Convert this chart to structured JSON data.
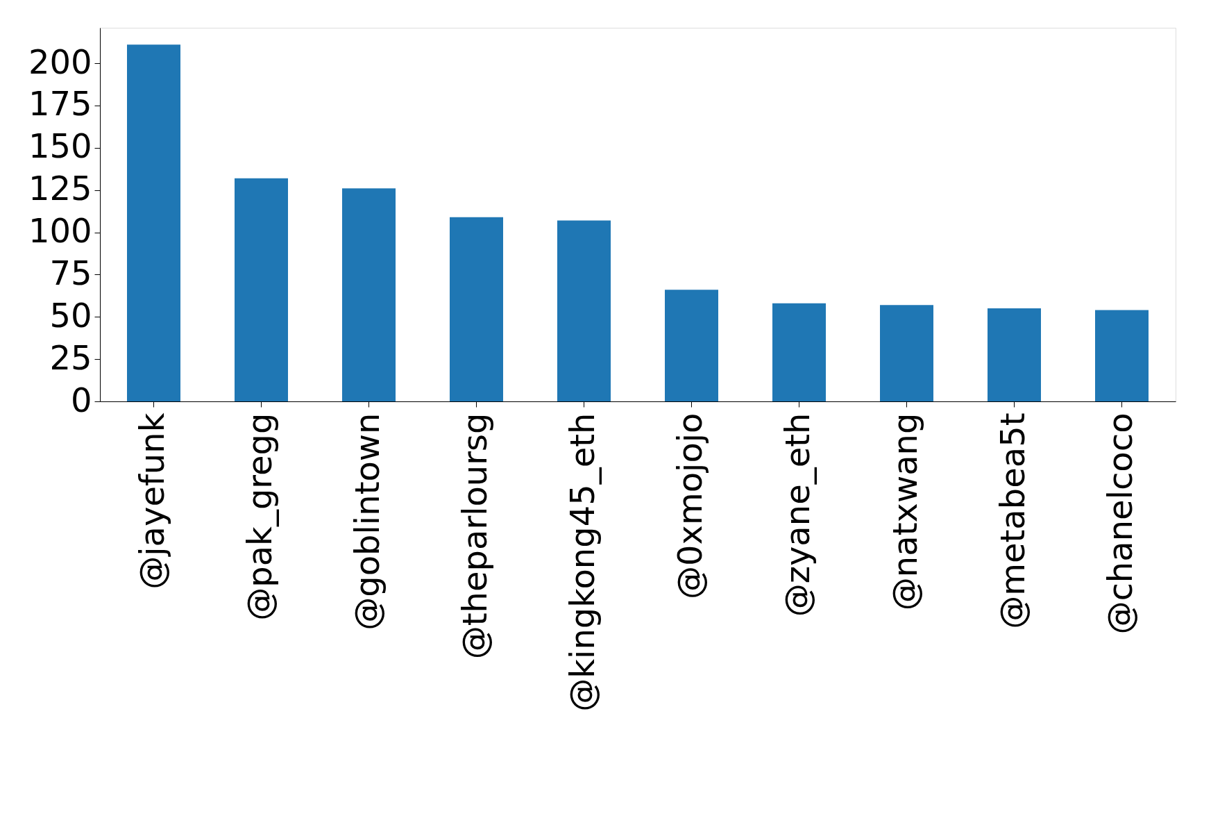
{
  "chart_data": {
    "type": "bar",
    "categories": [
      "@jayefunk",
      "@pak_gregg",
      "@goblintown",
      "@theparloursg",
      "@kingkong45_eth",
      "@0xmojojo",
      "@zyane_eth",
      "@natxwang",
      "@metabea5t",
      "@chanelcoco"
    ],
    "values": [
      211,
      132,
      126,
      109,
      107,
      66,
      58,
      57,
      55,
      54
    ],
    "color": "#1f77b4",
    "ylim": [
      0,
      221
    ],
    "yticks": [
      0,
      25,
      50,
      75,
      100,
      125,
      150,
      175,
      200
    ],
    "grid": false
  }
}
